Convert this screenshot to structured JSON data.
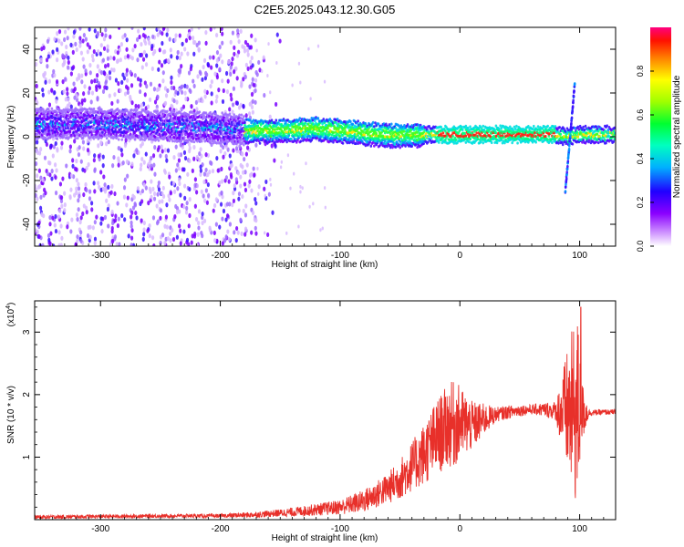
{
  "title": "C2E5.2025.043.12.30.G05",
  "colors": {
    "snr_line": "#e8302a",
    "axis": "#000000",
    "track_core": "#ff2a1a",
    "track_mid": "#30e070",
    "track_halo": "#6a00ff"
  },
  "chart_data": [
    {
      "type": "heatmap",
      "title": "C2E5.2025.043.12.30.G05",
      "xlabel": "Height of straight line (km)",
      "ylabel": "Frequency (Hz)",
      "xlim": [
        -355,
        130
      ],
      "ylim": [
        -50,
        50
      ],
      "xticks": [
        "-300",
        "-200",
        "-100",
        "0",
        "100"
      ],
      "yticks": [
        "-40",
        "-20",
        "0",
        "20",
        "40"
      ],
      "colorbar": {
        "label": "Normalized spectral amplitude",
        "range": [
          0,
          1
        ],
        "ticks": [
          "0.0",
          "0.2",
          "0.4",
          "0.6",
          "0.8"
        ]
      },
      "features": {
        "noise_region_x": [
          -355,
          -170
        ],
        "track_center_freq": [
          [
            -355,
            6
          ],
          [
            -300,
            6
          ],
          [
            -250,
            5
          ],
          [
            -200,
            4
          ],
          [
            -180,
            3
          ],
          [
            -150,
            3
          ],
          [
            -120,
            4
          ],
          [
            -100,
            3
          ],
          [
            -80,
            2
          ],
          [
            -60,
            1
          ],
          [
            -40,
            1
          ],
          [
            -20,
            1
          ],
          [
            0,
            1
          ],
          [
            40,
            1
          ],
          [
            80,
            1
          ],
          [
            90,
            0
          ],
          [
            100,
            1
          ],
          [
            130,
            1
          ]
        ],
        "track_peak_region_x": [
          -20,
          80
        ],
        "doppler_excursion_x": 92
      }
    },
    {
      "type": "line",
      "xlabel": "Height of straight line (km)",
      "ylabel": "SNR (10 * v/v)",
      "y_multiplier": "(x10",
      "y_multiplier_exp": "4",
      "xlim": [
        -355,
        130
      ],
      "ylim": [
        0,
        3.5
      ],
      "xticks": [
        "-300",
        "-200",
        "-100",
        "0",
        "100"
      ],
      "yticks": [
        "1",
        "2",
        "3"
      ],
      "envelope": [
        [
          -355,
          0.04
        ],
        [
          -300,
          0.05
        ],
        [
          -250,
          0.06
        ],
        [
          -200,
          0.06
        ],
        [
          -170,
          0.08
        ],
        [
          -140,
          0.12
        ],
        [
          -120,
          0.16
        ],
        [
          -100,
          0.2
        ],
        [
          -80,
          0.3
        ],
        [
          -60,
          0.5
        ],
        [
          -50,
          0.65
        ],
        [
          -40,
          0.85
        ],
        [
          -30,
          1.05
        ],
        [
          -20,
          1.3
        ],
        [
          -10,
          1.5
        ],
        [
          0,
          1.55
        ],
        [
          10,
          1.5
        ],
        [
          20,
          1.6
        ],
        [
          30,
          1.68
        ],
        [
          40,
          1.72
        ],
        [
          50,
          1.75
        ],
        [
          60,
          1.76
        ],
        [
          70,
          1.76
        ],
        [
          80,
          1.74
        ],
        [
          85,
          1.73
        ],
        [
          90,
          1.72
        ],
        [
          100,
          1.72
        ],
        [
          110,
          1.71
        ],
        [
          120,
          1.72
        ],
        [
          130,
          1.72
        ]
      ],
      "noise_amplitude": [
        [
          -355,
          0.03
        ],
        [
          -200,
          0.03
        ],
        [
          -150,
          0.06
        ],
        [
          -100,
          0.12
        ],
        [
          -60,
          0.25
        ],
        [
          -40,
          0.4
        ],
        [
          -20,
          0.6
        ],
        [
          -5,
          0.7
        ],
        [
          10,
          0.4
        ],
        [
          30,
          0.12
        ],
        [
          60,
          0.08
        ],
        [
          80,
          0.15
        ],
        [
          85,
          0.6
        ],
        [
          92,
          1.2
        ],
        [
          98,
          1.6
        ],
        [
          102,
          0.5
        ],
        [
          108,
          0.05
        ],
        [
          130,
          0.04
        ]
      ],
      "peak": [
        101,
        3.4
      ]
    }
  ]
}
